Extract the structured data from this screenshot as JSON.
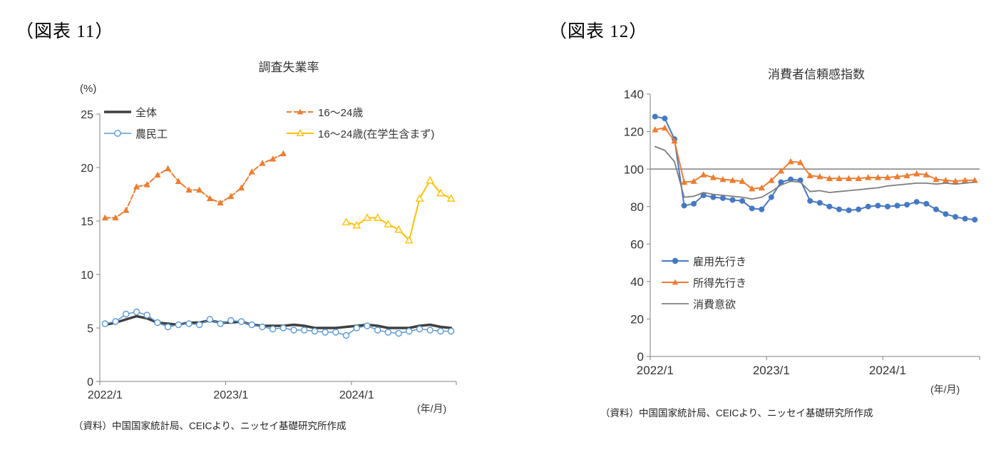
{
  "figures": [
    {
      "label": "（図表 11）",
      "source": "（資料）中国国家統計局、CEICより、ニッセイ基礎研究所作成"
    },
    {
      "label": "（図表 12）",
      "source": "（資料）中国国家統計局、CEICより、ニッセイ基礎研究所作成"
    }
  ],
  "chart_data": [
    {
      "type": "line",
      "title": "調査失業率",
      "y_unit": "(%)",
      "x_unit": "(年/月)",
      "ylim": [
        0,
        25
      ],
      "yticks": [
        0,
        5,
        10,
        15,
        20,
        25
      ],
      "grid": false,
      "legend_position": "inside-top",
      "months": [
        "2022/1",
        "2022/2",
        "2022/3",
        "2022/4",
        "2022/5",
        "2022/6",
        "2022/7",
        "2022/8",
        "2022/9",
        "2022/10",
        "2022/11",
        "2022/12",
        "2023/1",
        "2023/2",
        "2023/3",
        "2023/4",
        "2023/5",
        "2023/6",
        "2023/7",
        "2023/8",
        "2023/9",
        "2023/10",
        "2023/11",
        "2023/12",
        "2024/1",
        "2024/2",
        "2024/3",
        "2024/4",
        "2024/5",
        "2024/6",
        "2024/7",
        "2024/8",
        "2024/9",
        "2024/10"
      ],
      "xticks": [
        {
          "index": 0,
          "label": "2022/1"
        },
        {
          "index": 12,
          "label": "2023/1"
        },
        {
          "index": 24,
          "label": "2024/1"
        }
      ],
      "series": [
        {
          "id": "overall",
          "name": "全体",
          "color": "#3f3f3f",
          "line_width": 3.5,
          "dash": "",
          "marker": "none",
          "values": [
            5.3,
            5.5,
            5.8,
            6.1,
            5.9,
            5.5,
            5.4,
            5.3,
            5.5,
            5.5,
            5.7,
            5.5,
            5.5,
            5.6,
            5.3,
            5.2,
            5.2,
            5.2,
            5.3,
            5.2,
            5.0,
            5.0,
            5.0,
            5.1,
            5.2,
            5.3,
            5.2,
            5.0,
            5.0,
            5.0,
            5.2,
            5.3,
            5.1,
            5.0
          ]
        },
        {
          "id": "migrant-workers",
          "name": "農民工",
          "color": "#5b9bd5",
          "line_width": 1.5,
          "dash": "",
          "marker": "circle-open",
          "values": [
            5.4,
            5.6,
            6.3,
            6.5,
            6.2,
            5.5,
            5.1,
            5.3,
            5.4,
            5.3,
            5.8,
            5.4,
            5.7,
            5.6,
            5.3,
            5.1,
            4.9,
            5.0,
            4.8,
            4.8,
            4.7,
            4.6,
            4.6,
            4.3,
            5.0,
            5.2,
            4.8,
            4.6,
            4.5,
            4.7,
            4.9,
            4.8,
            4.7,
            4.7
          ]
        },
        {
          "id": "age-16-24",
          "name": "16～24歳",
          "color": "#ed7d31",
          "line_width": 2,
          "dash": "7 3",
          "marker": "triangle",
          "values": [
            15.3,
            15.3,
            16.0,
            18.2,
            18.4,
            19.3,
            19.9,
            18.7,
            17.9,
            17.9,
            17.1,
            16.7,
            17.3,
            18.1,
            19.6,
            20.4,
            20.8,
            21.3,
            null,
            null,
            null,
            null,
            null,
            null,
            null,
            null,
            null,
            null,
            null,
            null,
            null,
            null,
            null,
            null
          ]
        },
        {
          "id": "age-16-24-ex-students",
          "name": "16～24歳(在学生含まず)",
          "color": "#ffc000",
          "line_width": 2,
          "dash": "",
          "marker": "triangle-open",
          "values": [
            null,
            null,
            null,
            null,
            null,
            null,
            null,
            null,
            null,
            null,
            null,
            null,
            null,
            null,
            null,
            null,
            null,
            null,
            null,
            null,
            null,
            null,
            null,
            14.9,
            14.6,
            15.3,
            15.3,
            14.7,
            14.2,
            13.2,
            17.1,
            18.8,
            17.6,
            17.1
          ]
        }
      ]
    },
    {
      "type": "line",
      "title": "消費者信頼感指数",
      "y_unit": "",
      "x_unit": "(年/月)",
      "ylim": [
        0,
        140
      ],
      "yticks": [
        0,
        20,
        40,
        60,
        80,
        100,
        120,
        140
      ],
      "grid": false,
      "reference_line": {
        "value": 100,
        "color": "#7f7f7f"
      },
      "legend_position": "inside-middle-left",
      "months": [
        "2022/1",
        "2022/2",
        "2022/3",
        "2022/4",
        "2022/5",
        "2022/6",
        "2022/7",
        "2022/8",
        "2022/9",
        "2022/10",
        "2022/11",
        "2022/12",
        "2023/1",
        "2023/2",
        "2023/3",
        "2023/4",
        "2023/5",
        "2023/6",
        "2023/7",
        "2023/8",
        "2023/9",
        "2023/10",
        "2023/11",
        "2023/12",
        "2024/1",
        "2024/2",
        "2024/3",
        "2024/4",
        "2024/5",
        "2024/6",
        "2024/7",
        "2024/8",
        "2024/9",
        "2024/10"
      ],
      "xticks": [
        {
          "index": 0,
          "label": "2022/1"
        },
        {
          "index": 12,
          "label": "2023/1"
        },
        {
          "index": 24,
          "label": "2024/1"
        }
      ],
      "series": [
        {
          "id": "employment-outlook",
          "name": "雇用先行き",
          "color": "#4579c4",
          "line_width": 2,
          "dash": "",
          "marker": "circle",
          "values": [
            128,
            127,
            116,
            80.5,
            81.5,
            86,
            85,
            84.5,
            83.5,
            83,
            79,
            78.5,
            85,
            93,
            94.5,
            94,
            83,
            82,
            80,
            78.5,
            78,
            78.5,
            80,
            80.5,
            80,
            80.5,
            81,
            82.5,
            81.5,
            78.5,
            76,
            74.5,
            73.5,
            73
          ]
        },
        {
          "id": "income-outlook",
          "name": "所得先行き",
          "color": "#ed7d31",
          "line_width": 2,
          "dash": "",
          "marker": "triangle",
          "values": [
            121,
            122,
            115,
            93,
            93.5,
            97,
            95.5,
            94.5,
            94,
            93.5,
            89.5,
            90,
            94,
            99,
            104,
            103.5,
            96.5,
            96,
            95,
            95,
            95,
            95,
            95.5,
            95.5,
            95.5,
            96,
            96.5,
            97.5,
            97,
            94.5,
            94,
            93.5,
            94,
            94
          ]
        },
        {
          "id": "consumption-willingness",
          "name": "消費意欲",
          "color": "#7f7f7f",
          "line_width": 1.8,
          "dash": "",
          "marker": "none",
          "values": [
            112,
            110,
            104,
            85,
            85.5,
            87.5,
            86.5,
            86,
            85.5,
            85,
            84,
            85,
            88,
            91.5,
            93.5,
            93,
            88,
            88.5,
            87.5,
            88,
            88.5,
            89,
            89.5,
            90,
            91,
            91.5,
            92,
            92.5,
            92.5,
            92,
            92.5,
            92,
            92.5,
            93
          ]
        }
      ]
    }
  ]
}
